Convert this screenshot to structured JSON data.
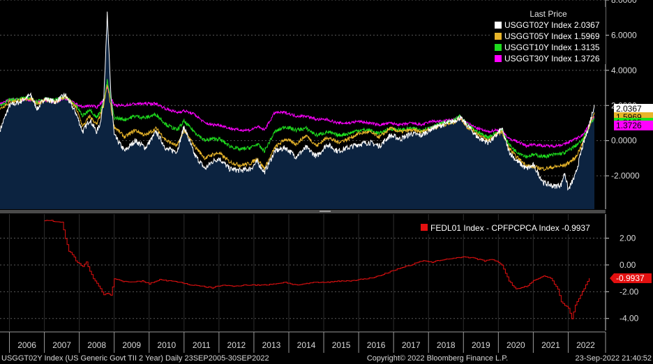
{
  "colors": {
    "background": "#000000",
    "area_fill": "#0c2340",
    "grid": "#5a5a5a",
    "axis_text": "#d9d9d9",
    "us2y": "#ffffff",
    "us5y": "#e8b52a",
    "us10y": "#1edc1e",
    "us30y": "#ff00ff",
    "spread": "#e31010",
    "divider": "#6e6e6e"
  },
  "chart_data": [
    {
      "id": "upper",
      "type": "line",
      "title": "Last Price",
      "legend_position": "top-right",
      "ylim": [
        -3.9,
        8.0
      ],
      "xlim": [
        2005.73,
        2022.75
      ],
      "y_ticks": [
        8.0,
        6.0,
        4.0,
        2.0,
        0.0,
        -2.0
      ],
      "y_tick_labels": [
        "8.0000",
        "6.0000",
        "4.0000",
        "2.0000",
        "0.0000",
        "-2.0000"
      ],
      "series": [
        {
          "name": "USGGT02Y Index",
          "legend": "USGGT02Y Index  2.0367",
          "last": "2.0367",
          "color_key": "us2y",
          "x": [
            2005.73,
            2006.0,
            2006.3,
            2006.6,
            2006.8,
            2007.0,
            2007.3,
            2007.6,
            2007.9,
            2008.1,
            2008.3,
            2008.5,
            2008.6,
            2008.7,
            2008.8,
            2008.9,
            2009.0,
            2009.3,
            2009.6,
            2009.9,
            2010.2,
            2010.5,
            2010.8,
            2011.0,
            2011.3,
            2011.6,
            2011.8,
            2012.0,
            2012.3,
            2012.6,
            2012.9,
            2013.1,
            2013.3,
            2013.6,
            2013.9,
            2014.2,
            2014.5,
            2014.8,
            2015.1,
            2015.4,
            2015.7,
            2016.0,
            2016.3,
            2016.6,
            2016.9,
            2017.2,
            2017.5,
            2017.8,
            2018.1,
            2018.4,
            2018.7,
            2018.9,
            2019.1,
            2019.4,
            2019.7,
            2019.9,
            2020.1,
            2020.3,
            2020.5,
            2020.8,
            2021.0,
            2021.3,
            2021.6,
            2021.8,
            2021.9,
            2022.0,
            2022.2,
            2022.4,
            2022.6,
            2022.75
          ],
          "values": [
            0.6,
            2.0,
            2.2,
            2.6,
            1.8,
            2.4,
            2.2,
            2.6,
            1.6,
            0.5,
            1.2,
            0.5,
            1.0,
            2.4,
            7.2,
            2.8,
            0.3,
            -0.6,
            0.0,
            -0.4,
            0.5,
            -0.5,
            -0.6,
            0.8,
            -0.8,
            -1.6,
            -1.2,
            -1.0,
            -1.6,
            -1.7,
            -1.6,
            -1.2,
            -1.8,
            -0.6,
            -0.4,
            -0.9,
            -0.4,
            -0.9,
            -0.2,
            -0.6,
            -0.4,
            -0.2,
            -0.1,
            -0.3,
            0.3,
            0.1,
            0.4,
            0.3,
            0.7,
            0.9,
            1.1,
            1.3,
            0.9,
            0.2,
            -0.1,
            0.2,
            0.7,
            -0.6,
            -1.1,
            -1.6,
            -1.4,
            -2.4,
            -2.6,
            -2.5,
            -1.8,
            -2.8,
            -2.0,
            -0.4,
            0.9,
            2.04
          ]
        },
        {
          "name": "USGGT05Y Index",
          "legend": "USGGT05Y Index  1.5969",
          "last": "1.5969",
          "color_key": "us5y",
          "x": [
            2005.73,
            2006.0,
            2006.3,
            2006.6,
            2006.8,
            2007.0,
            2007.3,
            2007.6,
            2007.9,
            2008.1,
            2008.3,
            2008.5,
            2008.7,
            2008.8,
            2008.9,
            2009.0,
            2009.3,
            2009.6,
            2009.9,
            2010.2,
            2010.5,
            2010.8,
            2011.0,
            2011.3,
            2011.6,
            2011.8,
            2012.0,
            2012.3,
            2012.6,
            2012.9,
            2013.1,
            2013.3,
            2013.6,
            2013.9,
            2014.2,
            2014.5,
            2014.8,
            2015.1,
            2015.4,
            2015.7,
            2016.0,
            2016.3,
            2016.6,
            2016.9,
            2017.2,
            2017.5,
            2017.8,
            2018.1,
            2018.4,
            2018.7,
            2018.9,
            2019.1,
            2019.4,
            2019.7,
            2019.9,
            2020.1,
            2020.3,
            2020.5,
            2020.8,
            2021.0,
            2021.3,
            2021.6,
            2021.9,
            2022.2,
            2022.4,
            2022.6,
            2022.75
          ],
          "values": [
            1.8,
            2.2,
            2.3,
            2.4,
            2.1,
            2.3,
            2.2,
            2.5,
            1.9,
            0.8,
            1.4,
            0.9,
            2.0,
            3.2,
            2.0,
            0.8,
            0.2,
            0.6,
            0.3,
            0.7,
            0.0,
            -0.3,
            0.6,
            -0.3,
            -1.0,
            -0.8,
            -0.7,
            -1.2,
            -1.4,
            -1.3,
            -1.0,
            -1.6,
            -0.4,
            0.1,
            -0.2,
            0.3,
            -0.3,
            0.2,
            -0.1,
            0.1,
            0.4,
            0.5,
            0.2,
            0.7,
            0.5,
            0.6,
            0.5,
            0.7,
            0.9,
            1.0,
            1.3,
            0.8,
            0.4,
            0.0,
            0.3,
            0.5,
            -0.4,
            -0.9,
            -1.4,
            -1.5,
            -1.6,
            -1.5,
            -1.4,
            -1.0,
            -0.2,
            0.8,
            1.6
          ]
        },
        {
          "name": "USGGT10Y Index",
          "legend": "USGGT10Y Index  1.3135",
          "last": "1.3135",
          "color_key": "us10y",
          "x": [
            2005.73,
            2006.0,
            2006.3,
            2006.6,
            2006.8,
            2007.0,
            2007.3,
            2007.6,
            2007.9,
            2008.1,
            2008.3,
            2008.5,
            2008.7,
            2008.8,
            2008.9,
            2009.0,
            2009.3,
            2009.6,
            2009.9,
            2010.2,
            2010.5,
            2010.8,
            2011.0,
            2011.3,
            2011.6,
            2011.8,
            2012.0,
            2012.3,
            2012.6,
            2012.9,
            2013.1,
            2013.3,
            2013.6,
            2013.9,
            2014.2,
            2014.5,
            2014.8,
            2015.1,
            2015.4,
            2015.7,
            2016.0,
            2016.3,
            2016.6,
            2016.9,
            2017.2,
            2017.5,
            2017.8,
            2018.1,
            2018.4,
            2018.7,
            2018.9,
            2019.1,
            2019.4,
            2019.7,
            2019.9,
            2020.1,
            2020.3,
            2020.5,
            2020.8,
            2021.0,
            2021.3,
            2021.6,
            2021.9,
            2022.2,
            2022.4,
            2022.6,
            2022.75
          ],
          "values": [
            2.0,
            2.3,
            2.4,
            2.4,
            2.2,
            2.4,
            2.3,
            2.5,
            2.0,
            1.4,
            1.8,
            1.3,
            2.1,
            3.4,
            2.4,
            1.3,
            1.2,
            1.4,
            1.3,
            1.5,
            0.9,
            0.6,
            1.1,
            0.5,
            0.0,
            0.1,
            0.1,
            -0.3,
            -0.5,
            -0.4,
            -0.2,
            -0.6,
            0.5,
            0.8,
            0.6,
            0.7,
            0.3,
            0.5,
            0.3,
            0.4,
            0.6,
            0.6,
            0.4,
            0.7,
            0.6,
            0.7,
            0.6,
            0.8,
            1.0,
            1.1,
            1.4,
            0.9,
            0.5,
            0.2,
            0.4,
            0.6,
            -0.2,
            -0.6,
            -0.9,
            -0.8,
            -0.9,
            -0.8,
            -0.7,
            -0.3,
            0.0,
            0.8,
            1.31
          ]
        },
        {
          "name": "USGGT30Y Index",
          "legend": "USGGT30Y Index  1.3726",
          "last": "1.3726",
          "color_key": "us30y",
          "x": [
            2005.73,
            2006.0,
            2006.3,
            2006.6,
            2006.8,
            2007.0,
            2007.3,
            2007.6,
            2007.9,
            2008.1,
            2008.3,
            2008.5,
            2008.7,
            2008.8,
            2008.9,
            2009.0,
            2009.3,
            2009.6,
            2009.9,
            2010.2,
            2010.5,
            2010.8,
            2011.0,
            2011.3,
            2011.6,
            2011.8,
            2012.0,
            2012.3,
            2012.6,
            2012.9,
            2013.1,
            2013.3,
            2013.6,
            2013.9,
            2014.2,
            2014.5,
            2014.8,
            2015.1,
            2015.4,
            2015.7,
            2016.0,
            2016.3,
            2016.6,
            2016.9,
            2017.2,
            2017.5,
            2017.8,
            2018.1,
            2018.4,
            2018.7,
            2018.9,
            2019.1,
            2019.4,
            2019.7,
            2019.9,
            2020.1,
            2020.3,
            2020.5,
            2020.8,
            2021.0,
            2021.3,
            2021.6,
            2021.9,
            2022.2,
            2022.4,
            2022.6,
            2022.75
          ],
          "values": [
            2.1,
            2.3,
            2.4,
            2.3,
            2.2,
            2.3,
            2.2,
            2.4,
            2.1,
            1.9,
            2.0,
            1.9,
            2.3,
            3.1,
            2.5,
            2.0,
            2.0,
            2.1,
            2.1,
            2.1,
            1.8,
            1.6,
            1.7,
            1.5,
            1.0,
            0.9,
            0.9,
            0.7,
            0.6,
            0.6,
            0.8,
            0.6,
            1.6,
            1.6,
            1.4,
            1.4,
            1.2,
            1.2,
            1.0,
            1.0,
            1.1,
            1.0,
            0.9,
            1.0,
            0.9,
            1.0,
            0.9,
            1.1,
            1.1,
            1.2,
            1.3,
            1.0,
            0.7,
            0.5,
            0.6,
            0.6,
            0.1,
            0.0,
            -0.3,
            -0.2,
            -0.3,
            -0.3,
            -0.2,
            0.1,
            0.3,
            0.9,
            1.37
          ]
        }
      ]
    },
    {
      "id": "lower",
      "type": "line",
      "legend_position": "top-right",
      "ylim": [
        -4.9,
        3.8
      ],
      "xlim": [
        2005.73,
        2022.75
      ],
      "y_ticks": [
        2.0,
        0.0,
        -2.0,
        -4.0
      ],
      "y_tick_labels": [
        "2.00",
        "0.00",
        "-2.00",
        "-4.00"
      ],
      "series": [
        {
          "name": "FEDL01 Index - CPFPCPCA Index",
          "legend": "FEDL01 Index - CPFPCPCA Index  -0.9937",
          "last": "-0.9937",
          "color_key": "spread",
          "x": [
            2007.0,
            2007.2,
            2007.5,
            2007.6,
            2007.7,
            2007.8,
            2007.9,
            2008.0,
            2008.1,
            2008.2,
            2008.3,
            2008.4,
            2008.5,
            2008.6,
            2008.7,
            2008.8,
            2008.9,
            2009.0,
            2009.2,
            2009.5,
            2009.8,
            2010.0,
            2010.3,
            2010.6,
            2010.9,
            2011.2,
            2011.5,
            2011.8,
            2012.1,
            2012.4,
            2012.7,
            2013.0,
            2013.3,
            2013.6,
            2013.9,
            2014.2,
            2014.5,
            2014.8,
            2015.1,
            2015.4,
            2015.7,
            2016.0,
            2016.3,
            2016.6,
            2016.9,
            2017.2,
            2017.5,
            2017.8,
            2018.1,
            2018.4,
            2018.7,
            2019.0,
            2019.3,
            2019.6,
            2019.8,
            2020.0,
            2020.1,
            2020.3,
            2020.5,
            2020.8,
            2021.0,
            2021.3,
            2021.5,
            2021.7,
            2021.8,
            2022.0,
            2022.1,
            2022.2,
            2022.4,
            2022.5,
            2022.6
          ],
          "values": [
            3.3,
            3.3,
            3.2,
            2.0,
            1.0,
            0.8,
            0.3,
            0.1,
            -0.1,
            0.2,
            -0.5,
            -1.0,
            -1.4,
            -1.8,
            -2.2,
            -2.1,
            -2.3,
            -1.0,
            -1.2,
            -1.3,
            -1.2,
            -1.4,
            -1.1,
            -1.2,
            -1.3,
            -1.5,
            -1.6,
            -1.7,
            -1.5,
            -1.6,
            -1.5,
            -1.5,
            -1.5,
            -1.4,
            -1.3,
            -1.5,
            -1.4,
            -1.3,
            -1.3,
            -1.2,
            -1.2,
            -1.1,
            -1.0,
            -0.8,
            -0.5,
            -0.2,
            0.0,
            0.3,
            0.2,
            0.4,
            0.5,
            0.6,
            0.5,
            0.3,
            0.4,
            0.2,
            0.0,
            -1.2,
            -1.8,
            -1.6,
            -1.2,
            -0.8,
            -1.0,
            -1.8,
            -2.8,
            -3.2,
            -4.0,
            -3.0,
            -2.0,
            -1.5,
            -0.99
          ]
        }
      ]
    }
  ],
  "x_axis": {
    "tick_labels": [
      "2006",
      "2007",
      "2008",
      "2009",
      "2010",
      "2011",
      "2012",
      "2013",
      "2014",
      "2015",
      "2016",
      "2017",
      "2018",
      "2019",
      "2020",
      "2021",
      "2022"
    ],
    "tick_years": [
      2006,
      2007,
      2008,
      2009,
      2010,
      2011,
      2012,
      2013,
      2014,
      2015,
      2016,
      2017,
      2018,
      2019,
      2020,
      2021,
      2022
    ]
  },
  "footer": {
    "description": "USGGT02Y Index (US Generic Govt TII 2 Year)  Daily 23SEP2005-30SEP2022",
    "copyright": "Copyright© 2022 Bloomberg Finance L.P.",
    "timestamp": "23-Sep-2022 21:40:52"
  }
}
